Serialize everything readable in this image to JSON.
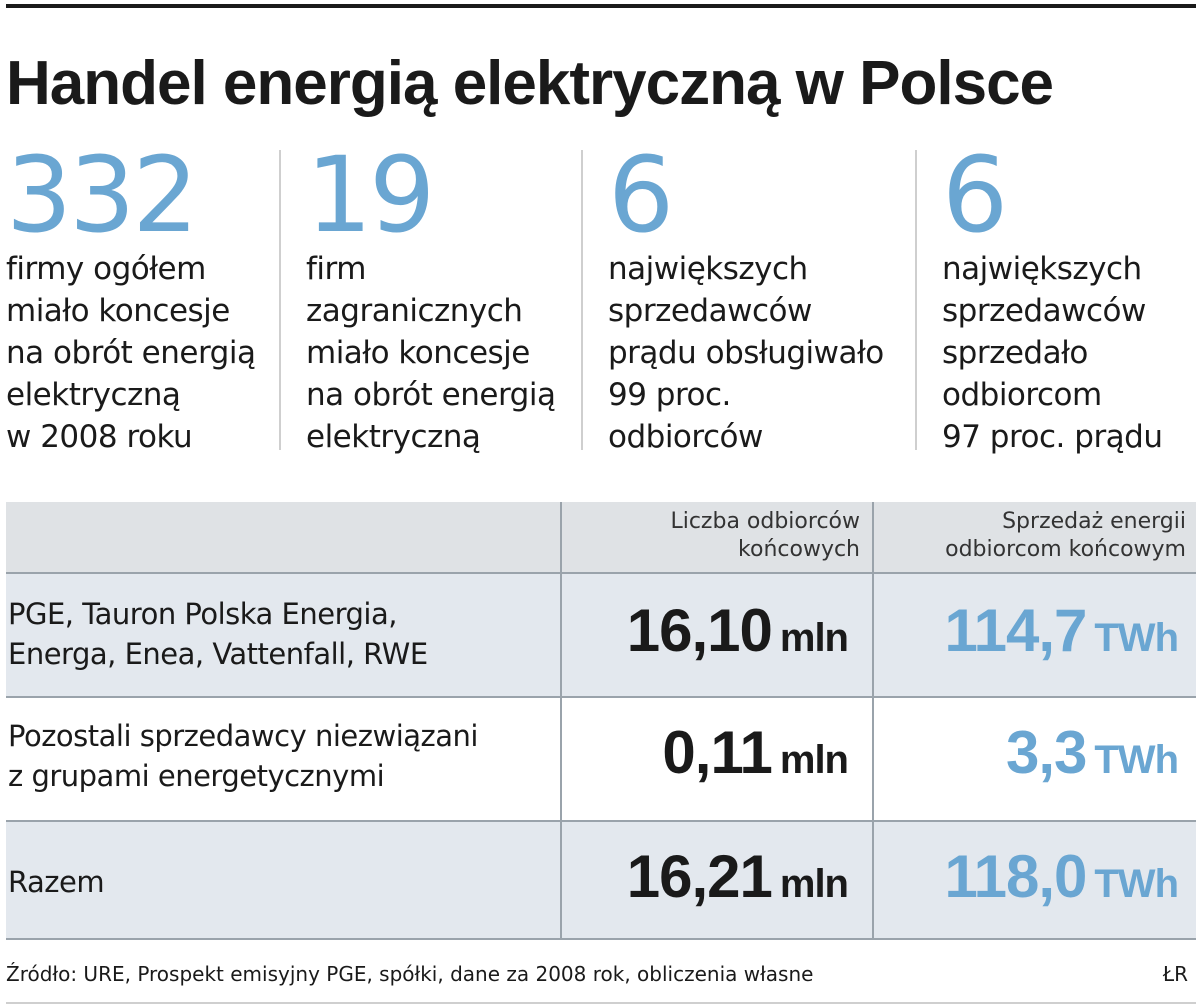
{
  "title": "Handel energią elektryczną  w Polsce",
  "stats": [
    {
      "number": "332",
      "text": "firmy ogółem\nmiało  koncesje\nna obrót energią\nelektryczną\nw 2008 roku"
    },
    {
      "number": "19",
      "text": "firm\nzagranicznych\nmiało koncesje\nna obrót energią\nelektryczną"
    },
    {
      "number": "6",
      "text": "największych\nsprzedawców\nprądu obsługiwało\n99 proc.\nodbiorców"
    },
    {
      "number": "6",
      "text": "największych\nsprzedawców\nsprzedało\nodbiorcom\n97 proc. prądu"
    }
  ],
  "chart_data": {
    "type": "table",
    "columns": [
      "",
      "Liczba odbiorców\nkońcowych",
      "Sprzedaż energii\nodbiorcom końcowym"
    ],
    "rows": [
      {
        "label": "PGE, Tauron Polska Energia,\nEnerga, Enea, Vattenfall, RWE",
        "customers": "16,10",
        "customers_unit": "mln",
        "sales": "114,7",
        "sales_unit": "TWh"
      },
      {
        "label": "Pozostali  sprzedawcy niezwiązani\nz grupami energetycznymi",
        "customers": "0,11",
        "customers_unit": "mln",
        "sales": "3,3",
        "sales_unit": "TWh"
      },
      {
        "label": "Razem",
        "customers": "16,21",
        "customers_unit": "mln",
        "sales": "118,0",
        "sales_unit": "TWh"
      }
    ]
  },
  "source": "Źródło: URE, Prospekt emisyjny PGE, spółki, dane za 2008 rok, obliczenia własne",
  "author": "ŁR",
  "colors": {
    "accent": "#6aa6d2",
    "text": "#1a1a1a",
    "header_bg": "#dfe2e5",
    "row_bg": "#e3e8ee"
  }
}
